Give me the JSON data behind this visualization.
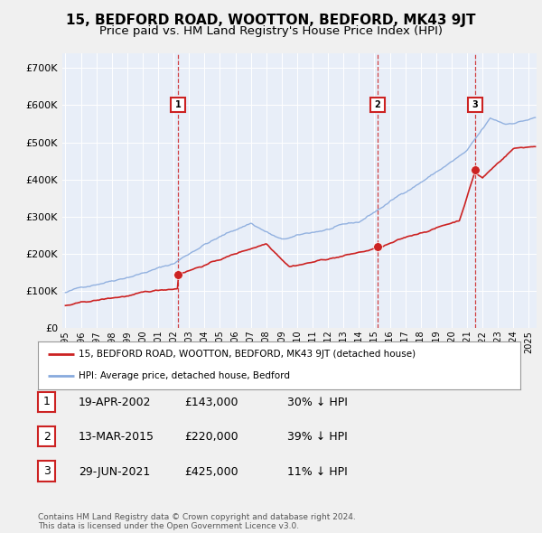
{
  "title": "15, BEDFORD ROAD, WOOTTON, BEDFORD, MK43 9JT",
  "subtitle": "Price paid vs. HM Land Registry's House Price Index (HPI)",
  "background_color": "#f0f0f0",
  "plot_bg_color": "#e8eef8",
  "title_fontsize": 11,
  "subtitle_fontsize": 9.5,
  "transactions": [
    {
      "num": 1,
      "date": "19-APR-2002",
      "price": "£143,000",
      "pct": "30% ↓ HPI",
      "x_year": 2002.3,
      "y_val": 143000
    },
    {
      "num": 2,
      "date": "13-MAR-2015",
      "price": "£220,000",
      "pct": "39% ↓ HPI",
      "x_year": 2015.2,
      "y_val": 220000
    },
    {
      "num": 3,
      "date": "29-JUN-2021",
      "price": "£425,000",
      "pct": "11% ↓ HPI",
      "x_year": 2021.5,
      "y_val": 425000
    }
  ],
  "legend_label_red": "15, BEDFORD ROAD, WOOTTON, BEDFORD, MK43 9JT (detached house)",
  "legend_label_blue": "HPI: Average price, detached house, Bedford",
  "footer": "Contains HM Land Registry data © Crown copyright and database right 2024.\nThis data is licensed under the Open Government Licence v3.0.",
  "red_color": "#cc2222",
  "blue_color": "#88aadd",
  "yticks": [
    0,
    100000,
    200000,
    300000,
    400000,
    500000,
    600000,
    700000
  ],
  "ylim": [
    0,
    740000
  ],
  "xlim_start": 1994.8,
  "xlim_end": 2025.5,
  "marker_box_color": "#cc2222"
}
